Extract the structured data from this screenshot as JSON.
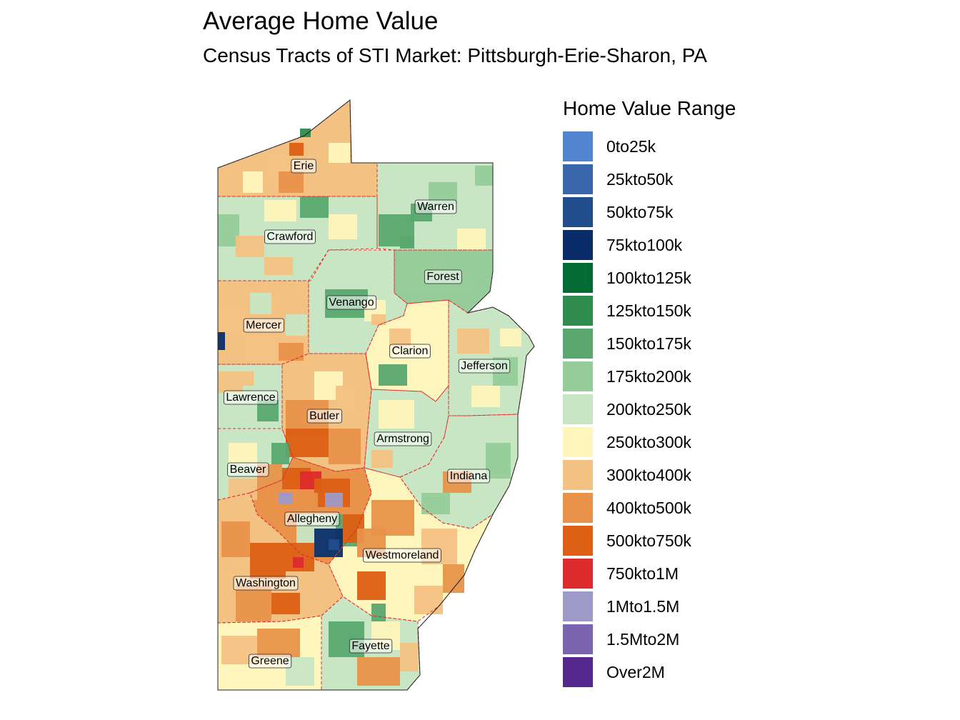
{
  "title": "Average Home Value",
  "subtitle": "Census Tracts of STI Market: Pittsburgh-Erie-Sharon, PA",
  "legend": {
    "title": "Home Value Range",
    "items": [
      {
        "label": "0to25k",
        "color": "#5285d0"
      },
      {
        "label": "25kto50k",
        "color": "#3a66ab"
      },
      {
        "label": "50kto75k",
        "color": "#224d8c"
      },
      {
        "label": "75kto100k",
        "color": "#0a2d69"
      },
      {
        "label": "100kto125k",
        "color": "#026b33"
      },
      {
        "label": "125kto150k",
        "color": "#2f8b4e"
      },
      {
        "label": "150kto175k",
        "color": "#5aa870"
      },
      {
        "label": "175kto200k",
        "color": "#96cc99"
      },
      {
        "label": "200kto250k",
        "color": "#c8e6c3"
      },
      {
        "label": "250kto300k",
        "color": "#fef6bc"
      },
      {
        "label": "300kto400k",
        "color": "#f3c283"
      },
      {
        "label": "400kto500k",
        "color": "#e8924a"
      },
      {
        "label": "500kto750k",
        "color": "#dc5f13"
      },
      {
        "label": "750kto1M",
        "color": "#dd2b2d"
      },
      {
        "label": "1Mto1.5M",
        "color": "#9e9ac8"
      },
      {
        "label": "1.5Mto2M",
        "color": "#7a64b0"
      },
      {
        "label": "Over2M",
        "color": "#55288d"
      }
    ]
  },
  "counties": [
    {
      "name": "Erie",
      "base": "#f3c283"
    },
    {
      "name": "Warren",
      "base": "#c8e6c3"
    },
    {
      "name": "Crawford",
      "base": "#c8e6c3"
    },
    {
      "name": "Forest",
      "base": "#96cc99"
    },
    {
      "name": "Venango",
      "base": "#c8e6c3"
    },
    {
      "name": "Mercer",
      "base": "#f3c283"
    },
    {
      "name": "Clarion",
      "base": "#fef6bc"
    },
    {
      "name": "Jefferson",
      "base": "#c8e6c3"
    },
    {
      "name": "Lawrence",
      "base": "#c8e6c3"
    },
    {
      "name": "Butler",
      "base": "#f3c283"
    },
    {
      "name": "Armstrong",
      "base": "#c8e6c3"
    },
    {
      "name": "Indiana",
      "base": "#c8e6c3"
    },
    {
      "name": "Beaver",
      "base": "#c8e6c3"
    },
    {
      "name": "Allegheny",
      "base": "#e8924a"
    },
    {
      "name": "Westmoreland",
      "base": "#fef6bc"
    },
    {
      "name": "Washington",
      "base": "#f3c283"
    },
    {
      "name": "Fayette",
      "base": "#c8e6c3"
    },
    {
      "name": "Greene",
      "base": "#fef6bc"
    }
  ]
}
